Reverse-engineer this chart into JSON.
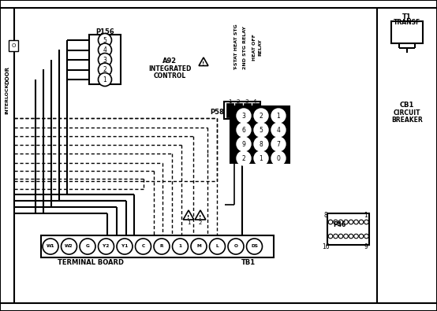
{
  "bg_color": "#ffffff",
  "line_color": "#000000",
  "figsize": [
    5.54,
    3.95
  ],
  "dpi": 100,
  "p156_labels": [
    "5",
    "4",
    "3",
    "2",
    "1"
  ],
  "p58_labels": [
    [
      "3",
      "2",
      "1"
    ],
    [
      "6",
      "5",
      "4"
    ],
    [
      "9",
      "8",
      "7"
    ],
    [
      "2",
      "1",
      "0"
    ]
  ],
  "tb_labels": [
    "W1",
    "W2",
    "G",
    "Y2",
    "Y1",
    "C",
    "R",
    "1",
    "M",
    "L",
    "O",
    "DS"
  ]
}
